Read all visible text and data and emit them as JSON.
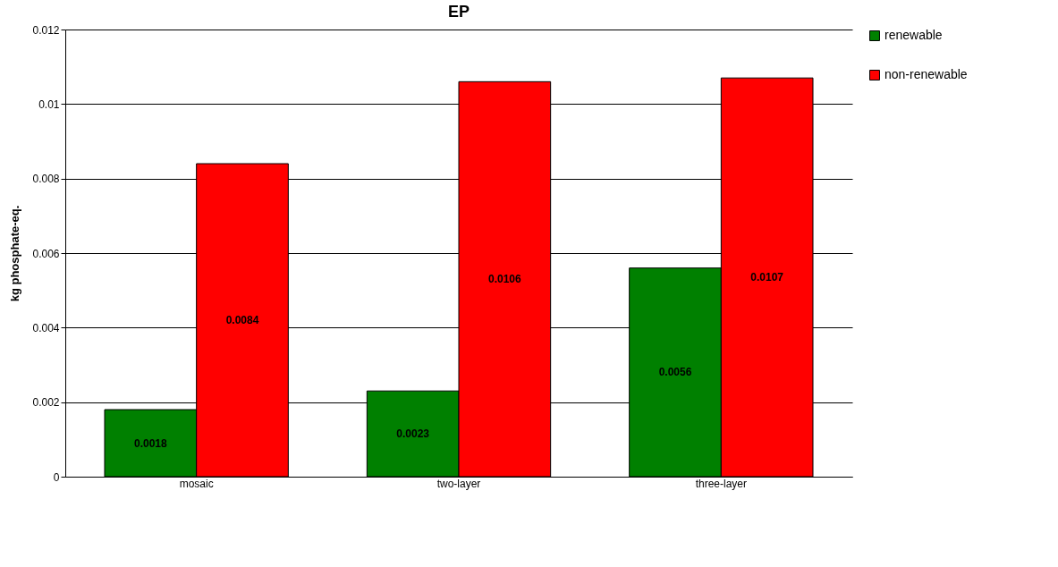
{
  "chart_data": {
    "type": "bar",
    "title": "EP",
    "ylabel": "kg phosphate-eq.",
    "categories": [
      "mosaic",
      "two-layer",
      "three-layer"
    ],
    "series": [
      {
        "name": "renewable",
        "color": "#008000",
        "values": [
          0.0018,
          0.0023,
          0.0056
        ]
      },
      {
        "name": "non-renewable",
        "color": "#ff0000",
        "values": [
          0.0084,
          0.0106,
          0.0107
        ]
      }
    ],
    "ylim": [
      0,
      0.012
    ],
    "yticks": [
      0,
      0.002,
      0.004,
      0.006,
      0.008,
      0.01,
      0.012
    ],
    "grid": "y",
    "legend": "right",
    "data_labels": true
  }
}
